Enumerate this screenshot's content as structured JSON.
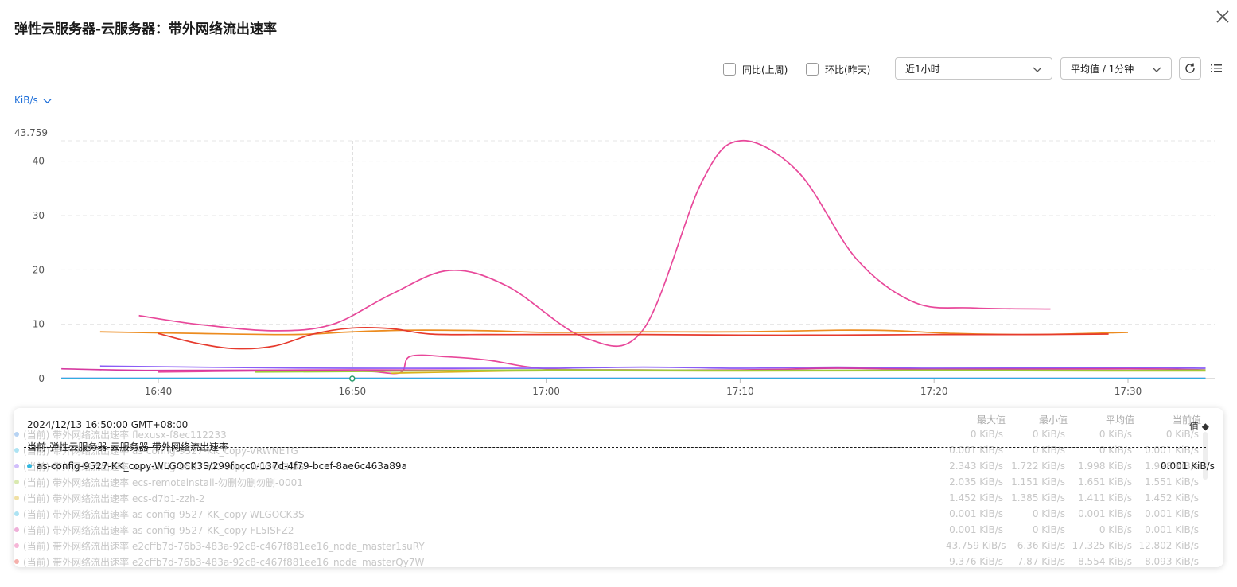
{
  "title": "弹性云服务器-云服务器：带外网络流出速率",
  "icons": {
    "close": "close-icon",
    "refresh": "refresh-icon",
    "list": "list-icon",
    "chevron": "chevron-down-icon"
  },
  "colors": {
    "accent": "#1e6fd9"
  },
  "toolbar": {
    "yoy_label": "同比(上周)",
    "mom_label": "环比(昨天)",
    "time_range": "近1小时",
    "aggregation": "平均值 / 1分钟"
  },
  "unit": "KiB/s",
  "chart_data": {
    "type": "line",
    "y_max_label": "43.759",
    "y_ticks": [
      "40",
      "30",
      "20",
      "10",
      "0"
    ],
    "x_ticks": [
      "16:40",
      "16:50",
      "17:00",
      "17:10",
      "17:20",
      "17:30"
    ],
    "ylim": [
      0,
      43.759
    ],
    "grid": true,
    "crosshair_time": "16:50",
    "series": [
      {
        "color": "#e8489a",
        "x": [
          "16:39",
          "16:42",
          "16:46",
          "16:49",
          "16:52",
          "16:55",
          "16:58",
          "17:02",
          "17:05",
          "17:08",
          "17:10",
          "17:13",
          "17:16",
          "17:19",
          "17:22",
          "17:26"
        ],
        "values": [
          11.6,
          10,
          8.8,
          10,
          15.5,
          19.9,
          17,
          7.5,
          9,
          36,
          43.759,
          38,
          22,
          14,
          13,
          12.8
        ]
      },
      {
        "color": "#ec8b1e",
        "x": [
          "16:37",
          "16:42",
          "16:47",
          "16:50",
          "16:53",
          "16:57",
          "17:00",
          "17:05",
          "17:10",
          "17:15",
          "17:18",
          "17:21",
          "17:25",
          "17:30"
        ],
        "values": [
          8.6,
          8.3,
          8.1,
          8.6,
          8.9,
          8.8,
          8.5,
          8.6,
          8.6,
          8.9,
          8.8,
          8.3,
          8.1,
          8.5
        ]
      },
      {
        "color": "#e63a2d",
        "x": [
          "16:40",
          "16:42",
          "16:44",
          "16:46",
          "16:48",
          "16:50",
          "16:52",
          "16:54",
          "16:57",
          "17:00",
          "17:05",
          "17:10",
          "17:15",
          "17:20",
          "17:25",
          "17:29"
        ],
        "values": [
          8.3,
          6.5,
          5.5,
          6,
          8.2,
          9.3,
          9.2,
          8.2,
          8.1,
          8.1,
          8.1,
          8,
          8,
          8.1,
          8.1,
          8.2
        ]
      },
      {
        "color": "#e8489a",
        "x": [
          "16:40",
          "16:45",
          "16:49",
          "16:51",
          "16:52.5",
          "16:53",
          "16:55",
          "16:57",
          "17:00",
          "17:05",
          "17:10",
          "17:20",
          "17:30",
          "17:34"
        ],
        "values": [
          1.2,
          1.4,
          1.4,
          1.3,
          1.1,
          4.1,
          4,
          3.4,
          1.8,
          1.6,
          1.5,
          1.5,
          1.5,
          1.5
        ]
      },
      {
        "color": "#8b5cf6",
        "x": [
          "16:37",
          "16:45",
          "16:50",
          "17:00",
          "17:05",
          "17:10",
          "17:15",
          "17:20",
          "17:30",
          "17:34"
        ],
        "values": [
          2.3,
          2,
          1.9,
          1.9,
          2.1,
          1.9,
          2.1,
          1.9,
          2,
          1.9
        ]
      },
      {
        "color": "#d63aa0",
        "x": [
          "16:35",
          "16:40",
          "16:50",
          "17:00",
          "17:10",
          "17:15",
          "17:20",
          "17:30",
          "17:34"
        ],
        "values": [
          1.8,
          1.5,
          1.6,
          1.5,
          1.6,
          1.9,
          1.7,
          1.8,
          1.6
        ]
      },
      {
        "color": "#d9b21c",
        "x": [
          "16:52",
          "16:55",
          "17:00",
          "17:10",
          "17:20",
          "17:30",
          "17:34"
        ],
        "values": [
          1.0,
          1.2,
          1.45,
          1.4,
          1.45,
          1.4,
          1.4
        ]
      },
      {
        "color": "#a0c93a",
        "x": [
          "16:45",
          "16:50",
          "17:00",
          "17:10",
          "17:20",
          "17:30",
          "17:34"
        ],
        "values": [
          1.2,
          1.3,
          1.6,
          1.5,
          1.55,
          1.5,
          1.55
        ]
      },
      {
        "color": "#2b5fd9",
        "x": [
          "16:35",
          "17:34"
        ],
        "values": [
          0.05,
          0.05
        ]
      },
      {
        "color": "#32b8e0",
        "x": [
          "16:35",
          "17:34"
        ],
        "values": [
          0.001,
          0.001
        ]
      }
    ]
  },
  "legend": {
    "columns": [
      "最大值",
      "最小值",
      "平均值",
      "当前值"
    ],
    "sort_label": "值 ◆",
    "rows": [
      {
        "color": "#4a90e2",
        "name": "(当前) 带外网络流出速率 flexusx-f8ec112233",
        "max": "0 KiB/s",
        "min": "0 KiB/s",
        "avg": "0 KiB/s",
        "cur": "0 KiB/s"
      },
      {
        "color": "#32b8e0",
        "name": "(当前) 带外网络流出速率 as-config-9527-KK_copy-VRWNETG",
        "max": "0.001 KiB/s",
        "min": "0 KiB/s",
        "avg": "0 KiB/s",
        "cur": "0.001 KiB/s"
      },
      {
        "color": "#8b5cf6",
        "name": "(当前) 带外网络流出速率 as-config-9527-KK_copy-WLGOCK3S",
        "max": "2.343 KiB/s",
        "min": "1.722 KiB/s",
        "avg": "1.998 KiB/s",
        "cur": "1.998 KiB/s"
      },
      {
        "color": "#a0c93a",
        "name": "(当前) 带外网络流出速率 ecs-remoteinstall-勿删勿删勿删-0001",
        "max": "2.035 KiB/s",
        "min": "1.151 KiB/s",
        "avg": "1.651 KiB/s",
        "cur": "1.551 KiB/s"
      },
      {
        "color": "#d9b21c",
        "name": "(当前) 带外网络流出速率 ecs-d7b1-zzh-2",
        "max": "1.452 KiB/s",
        "min": "1.385 KiB/s",
        "avg": "1.411 KiB/s",
        "cur": "1.452 KiB/s"
      },
      {
        "color": "#32b8e0",
        "name": "(当前) 带外网络流出速率 as-config-9527-KK_copy-WLGOCK3S",
        "max": "0.001 KiB/s",
        "min": "0 KiB/s",
        "avg": "0.001 KiB/s",
        "cur": "0.001 KiB/s"
      },
      {
        "color": "#d63aa0",
        "name": "(当前) 带外网络流出速率 as-config-9527-KK_copy-FL5ISFZ2",
        "max": "0.001 KiB/s",
        "min": "0 KiB/s",
        "avg": "0 KiB/s",
        "cur": "0.001 KiB/s"
      },
      {
        "color": "#e8489a",
        "name": "(当前) 带外网络流出速率 e2cffb7d-76b3-483a-92c8-c467f881ee16_node_master1suRY",
        "max": "43.759 KiB/s",
        "min": "6.36 KiB/s",
        "avg": "17.325 KiB/s",
        "cur": "12.802 KiB/s"
      },
      {
        "color": "#e63a2d",
        "name": "(当前) 带外网络流出速率 e2cffb7d-76b3-483a-92c8-c467f881ee16_node_masterQy7W",
        "max": "9.376 KiB/s",
        "min": "7.87 KiB/s",
        "avg": "8.554 KiB/s",
        "cur": "8.093 KiB/s"
      }
    ]
  },
  "tooltip": {
    "time": "2024/12/13 16:50:00 GMT+08:00",
    "metric": "当前-弹性云服务器-云服务器-带外网络流出速率",
    "resource": "as-config-9527-KK_copy-WLGOCK3S/299fbcc0-137d-4f79-bcef-8ae6c463a89a",
    "value": "0.001 KiB/s",
    "color": "#32b8e0"
  }
}
